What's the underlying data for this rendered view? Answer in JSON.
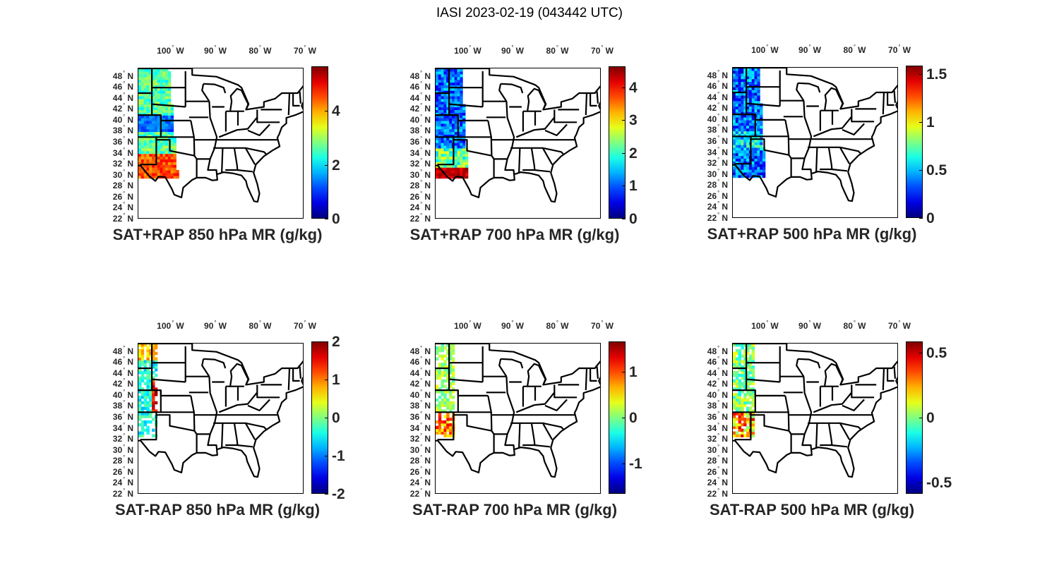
{
  "figure": {
    "title": "IASI 2023-02-19 (043442 UTC)",
    "colormap": "jet",
    "lon_labels": [
      {
        "deg": "100",
        "hem": "W",
        "lon": -100
      },
      {
        "deg": "90",
        "hem": "W",
        "lon": -90
      },
      {
        "deg": "80",
        "hem": "W",
        "lon": -80
      },
      {
        "deg": "70",
        "hem": "W",
        "lon": -70
      }
    ],
    "lat_labels": [
      {
        "deg": "48",
        "hem": "N",
        "lat": 48
      },
      {
        "deg": "46",
        "hem": "N",
        "lat": 46
      },
      {
        "deg": "44",
        "hem": "N",
        "lat": 44
      },
      {
        "deg": "42",
        "hem": "N",
        "lat": 42
      },
      {
        "deg": "40",
        "hem": "N",
        "lat": 40
      },
      {
        "deg": "38",
        "hem": "N",
        "lat": 38
      },
      {
        "deg": "36",
        "hem": "N",
        "lat": 36
      },
      {
        "deg": "34",
        "hem": "N",
        "lat": 34
      },
      {
        "deg": "32",
        "hem": "N",
        "lat": 32
      },
      {
        "deg": "30",
        "hem": "N",
        "lat": 30
      },
      {
        "deg": "28",
        "hem": "N",
        "lat": 28
      },
      {
        "deg": "26",
        "hem": "N",
        "lat": 26
      },
      {
        "deg": "24",
        "hem": "N",
        "lat": 24
      },
      {
        "deg": "22",
        "hem": "N",
        "lat": 22
      }
    ]
  },
  "panels": [
    {
      "title": "SAT+RAP 850 hPa MR (g/kg)",
      "clim": [
        0,
        5.66
      ],
      "ticks": [
        {
          "v": 0,
          "label": "0"
        },
        {
          "v": 2,
          "label": "2"
        },
        {
          "v": 4,
          "label": "4"
        }
      ]
    },
    {
      "title": "SAT+RAP 700 hPa MR (g/kg)",
      "clim": [
        0,
        4.64
      ],
      "ticks": [
        {
          "v": 0,
          "label": "0"
        },
        {
          "v": 1,
          "label": "1"
        },
        {
          "v": 2,
          "label": "2"
        },
        {
          "v": 3,
          "label": "3"
        },
        {
          "v": 4,
          "label": "4"
        }
      ]
    },
    {
      "title": "SAT+RAP 500 hPa MR (g/kg)",
      "clim": [
        0,
        1.59
      ],
      "ticks": [
        {
          "v": 0,
          "label": "0"
        },
        {
          "v": 0.5,
          "label": "0.5"
        },
        {
          "v": 1,
          "label": "1"
        },
        {
          "v": 1.5,
          "label": "1.5"
        }
      ]
    },
    {
      "title": "SAT-RAP 850 hPa MR (g/kg)",
      "clim": [
        -2,
        2
      ],
      "ticks": [
        {
          "v": -2,
          "label": "-2"
        },
        {
          "v": -1,
          "label": "-1"
        },
        {
          "v": 0,
          "label": "0"
        },
        {
          "v": 1,
          "label": "1"
        },
        {
          "v": 2,
          "label": "2"
        }
      ]
    },
    {
      "title": "SAT-RAP 700 hPa MR (g/kg)",
      "clim": [
        -1.65,
        1.65
      ],
      "ticks": [
        {
          "v": -1,
          "label": "-1"
        },
        {
          "v": 0,
          "label": "0"
        },
        {
          "v": 1,
          "label": "1"
        }
      ]
    },
    {
      "title": "SAT-RAP 500 hPa MR (g/kg)",
      "clim": [
        -0.59,
        0.59
      ],
      "ticks": [
        {
          "v": -0.5,
          "label": "-0.5"
        },
        {
          "v": 0,
          "label": "0"
        },
        {
          "v": 0.5,
          "label": "0.5"
        }
      ]
    }
  ]
}
